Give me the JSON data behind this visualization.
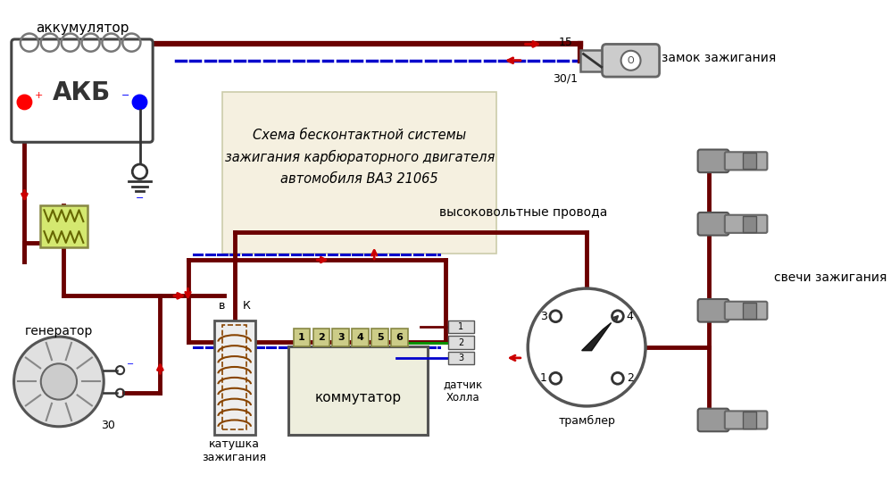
{
  "title_line1": "Схема бесконтактной системы",
  "title_line2": "зажигания карбюраторного двигателя",
  "title_line3": "автомобиля ВАЗ 21065",
  "label_akkum": "аккумулятор",
  "label_akb": "АКБ",
  "label_gen": "генератор",
  "label_katushka": "катушка\nзажигания",
  "label_kommutator": "коммутатор",
  "label_datchik": "датчик\nХолла",
  "label_trambler": "трамблер",
  "label_zamok": "замок зажигания",
  "label_vv_provoda": "высоковольтные провода",
  "label_svechi": "свечи зажигания",
  "label_30_1": "30/1",
  "label_15": "15",
  "label_30_gen": "30",
  "label_B": "в",
  "label_K": "К",
  "bg_color": "#ffffff",
  "wire_dark_red": "#6B0000",
  "wire_blue": "#0000CC",
  "arrow_red": "#CC0000",
  "fuse_color": "#d4e870",
  "text_color": "#000000",
  "wire_lw": 3.5,
  "dashed_lw": 2.5
}
